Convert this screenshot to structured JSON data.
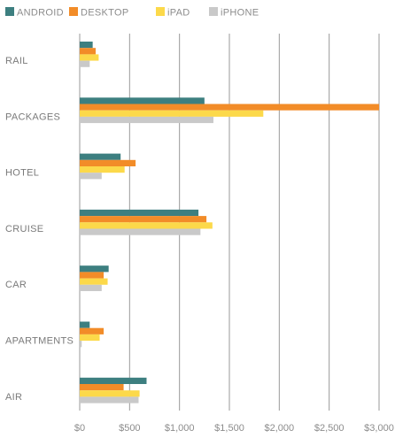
{
  "chart_data": {
    "type": "bar",
    "orientation": "horizontal",
    "categories": [
      "RAIL",
      "PACKAGES",
      "HOTEL",
      "CRUISE",
      "CAR",
      "APARTMENTS",
      "AIR"
    ],
    "series": [
      {
        "name": "ANDROID",
        "color": "#3d7f80",
        "values": [
          130,
          1250,
          410,
          1190,
          290,
          100,
          670
        ]
      },
      {
        "name": "DESKTOP",
        "color": "#f28c28",
        "values": [
          160,
          3000,
          560,
          1270,
          240,
          240,
          440
        ]
      },
      {
        "name": "iPAD",
        "color": "#fcd94a",
        "values": [
          190,
          1840,
          450,
          1330,
          280,
          200,
          600
        ]
      },
      {
        "name": "iPHONE",
        "color": "#c9c9c9",
        "values": [
          100,
          1340,
          220,
          1210,
          220,
          20,
          590
        ]
      }
    ],
    "xlim": [
      0,
      3000
    ],
    "x_ticks": [
      0,
      500,
      1000,
      1500,
      2000,
      2500,
      3000
    ],
    "x_tick_labels": [
      "$0",
      "$500",
      "$1,000",
      "$1,500",
      "$2,000",
      "$2,500",
      "$3,000"
    ],
    "legend_position": "top-left",
    "grid": true
  }
}
